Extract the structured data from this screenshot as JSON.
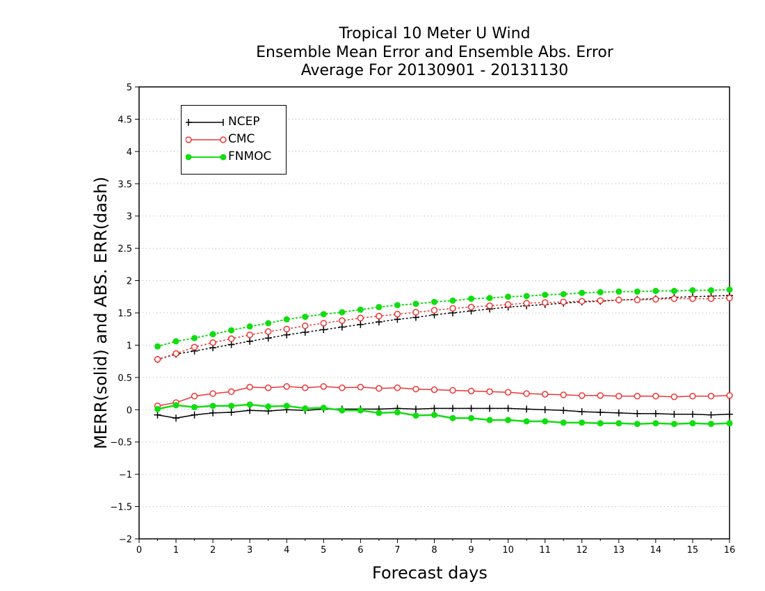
{
  "title_lines": [
    "Tropical 10 Meter U Wind",
    "Ensemble Mean Error and Ensemble Abs. Error",
    "Average For 20130901 - 20131130"
  ],
  "chart_data": {
    "type": "line",
    "title": "Tropical 10 Meter U Wind",
    "subtitle": "Ensemble Mean Error and Ensemble Abs. Error / Average For 20130901 - 20131130",
    "xlabel": "Forecast days",
    "ylabel": "MERR(solid) and ABS. ERR(dash)",
    "xlim": [
      0,
      16
    ],
    "ylim": [
      -2,
      5
    ],
    "x_ticks": [
      0,
      1,
      2,
      3,
      4,
      5,
      6,
      7,
      8,
      9,
      10,
      11,
      12,
      13,
      14,
      15,
      16
    ],
    "y_ticks": [
      -2,
      -1.5,
      -1,
      -0.5,
      0,
      0.5,
      1,
      1.5,
      2,
      2.5,
      3,
      3.5,
      4,
      4.5,
      5
    ],
    "y_tick_labels": [
      "−2",
      "−1.5",
      "−1",
      "−0.5",
      "0",
      "0.5",
      "1",
      "1.5",
      "2",
      "2.5",
      "3",
      "3.5",
      "4",
      "4.5",
      "5"
    ],
    "grid": "horizontal dotted",
    "legend_position": "top-left",
    "x": [
      0.5,
      1,
      1.5,
      2,
      2.5,
      3,
      3.5,
      4,
      4.5,
      5,
      5.5,
      6,
      6.5,
      7,
      7.5,
      8,
      8.5,
      9,
      9.5,
      10,
      10.5,
      11,
      11.5,
      12,
      12.5,
      13,
      13.5,
      14,
      14.5,
      15,
      15.5,
      16
    ],
    "series": [
      {
        "name": "NCEP",
        "color": "#000000",
        "marker": "plus",
        "merr": [
          -0.08,
          -0.13,
          -0.08,
          -0.05,
          -0.04,
          -0.01,
          -0.02,
          0.0,
          -0.01,
          0.01,
          0.01,
          0.01,
          0.01,
          0.02,
          0.01,
          0.02,
          0.02,
          0.02,
          0.02,
          0.02,
          0.01,
          0.0,
          -0.01,
          -0.03,
          -0.04,
          -0.05,
          -0.06,
          -0.06,
          -0.07,
          -0.07,
          -0.08,
          -0.07
        ],
        "abs_err": [
          0.78,
          0.86,
          0.91,
          0.96,
          1.01,
          1.06,
          1.11,
          1.16,
          1.2,
          1.24,
          1.28,
          1.32,
          1.36,
          1.4,
          1.43,
          1.47,
          1.5,
          1.53,
          1.56,
          1.59,
          1.61,
          1.63,
          1.65,
          1.67,
          1.68,
          1.7,
          1.71,
          1.72,
          1.74,
          1.75,
          1.76,
          1.77
        ]
      },
      {
        "name": "CMC",
        "color": "#ee3333",
        "marker": "open-circle",
        "merr": [
          0.06,
          0.11,
          0.21,
          0.25,
          0.28,
          0.35,
          0.34,
          0.36,
          0.34,
          0.36,
          0.34,
          0.35,
          0.33,
          0.34,
          0.32,
          0.31,
          0.3,
          0.29,
          0.28,
          0.27,
          0.25,
          0.24,
          0.23,
          0.22,
          0.22,
          0.21,
          0.21,
          0.21,
          0.2,
          0.21,
          0.21,
          0.22
        ],
        "abs_err": [
          0.78,
          0.87,
          0.97,
          1.04,
          1.1,
          1.16,
          1.21,
          1.25,
          1.3,
          1.34,
          1.38,
          1.42,
          1.45,
          1.48,
          1.51,
          1.54,
          1.57,
          1.59,
          1.61,
          1.63,
          1.65,
          1.66,
          1.67,
          1.68,
          1.69,
          1.7,
          1.7,
          1.71,
          1.72,
          1.72,
          1.72,
          1.73
        ]
      },
      {
        "name": "FNMOC",
        "color": "#11dd11",
        "marker": "filled-circle",
        "merr": [
          0.01,
          0.07,
          0.04,
          0.06,
          0.06,
          0.08,
          0.05,
          0.06,
          0.02,
          0.03,
          -0.01,
          -0.01,
          -0.05,
          -0.04,
          -0.09,
          -0.08,
          -0.13,
          -0.13,
          -0.16,
          -0.16,
          -0.18,
          -0.18,
          -0.2,
          -0.2,
          -0.21,
          -0.21,
          -0.22,
          -0.21,
          -0.22,
          -0.21,
          -0.22,
          -0.21
        ],
        "abs_err": [
          0.98,
          1.06,
          1.11,
          1.17,
          1.23,
          1.29,
          1.34,
          1.4,
          1.44,
          1.48,
          1.51,
          1.55,
          1.59,
          1.62,
          1.64,
          1.67,
          1.69,
          1.72,
          1.73,
          1.75,
          1.76,
          1.78,
          1.79,
          1.81,
          1.82,
          1.83,
          1.83,
          1.84,
          1.84,
          1.85,
          1.85,
          1.86
        ]
      }
    ]
  }
}
